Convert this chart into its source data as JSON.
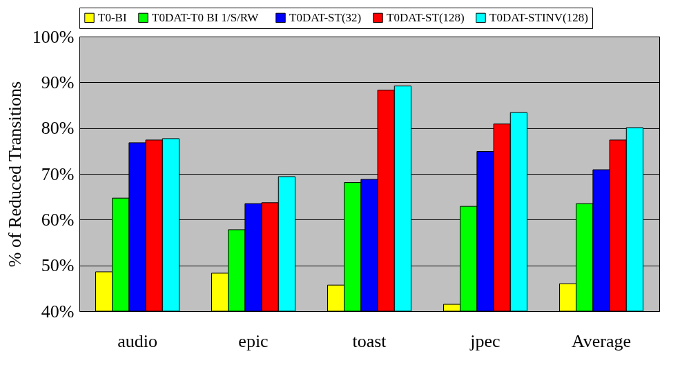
{
  "chart_data": {
    "type": "bar",
    "ylabel": "% of Reduced Transitions",
    "categories": [
      "audio",
      "epic",
      "toast",
      "jpec",
      "Average"
    ],
    "series": [
      {
        "name": "T0-BI",
        "color": "#ffff00",
        "values": [
          48.6,
          48.3,
          45.7,
          41.5,
          46.0
        ]
      },
      {
        "name": "T0DAT-T0  BI  1/S/RW",
        "color": "#00ff00",
        "values": [
          64.7,
          57.8,
          68.1,
          62.9,
          63.5
        ]
      },
      {
        "name": "T0DAT-ST(32)",
        "color": "#0000ff",
        "values": [
          76.8,
          63.5,
          68.8,
          74.9,
          70.9
        ]
      },
      {
        "name": "T0DAT-ST(128)",
        "color": "#ff0000",
        "values": [
          77.4,
          63.7,
          88.3,
          80.9,
          77.4
        ]
      },
      {
        "name": "T0DAT-STINV(128)",
        "color": "#00ffff",
        "values": [
          77.7,
          69.4,
          89.2,
          83.4,
          80.1
        ]
      }
    ],
    "ylim": [
      40,
      100
    ],
    "yticks": [
      {
        "value": 40,
        "label": "40%"
      },
      {
        "value": 50,
        "label": "50%"
      },
      {
        "value": 60,
        "label": "60%"
      },
      {
        "value": 70,
        "label": "70%"
      },
      {
        "value": 80,
        "label": "80%"
      },
      {
        "value": 90,
        "label": "90%"
      },
      {
        "value": 100,
        "label": "100%"
      }
    ],
    "grid": "y",
    "legend": "top"
  }
}
